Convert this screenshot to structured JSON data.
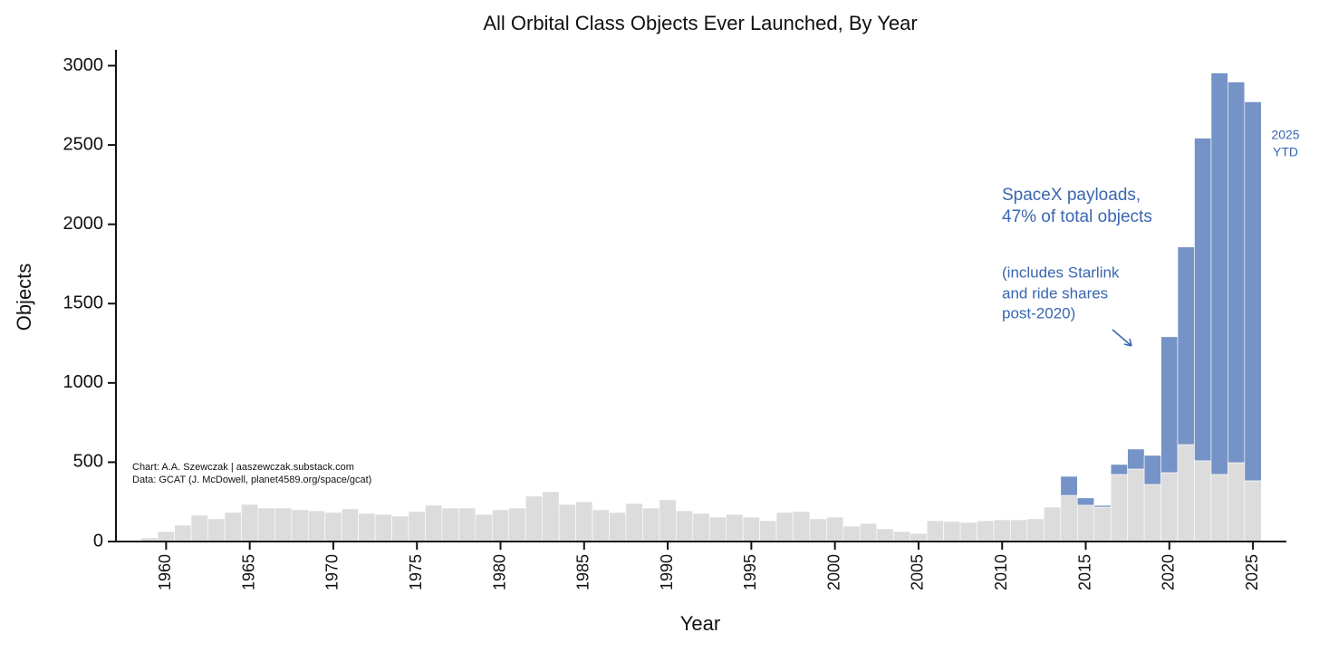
{
  "chart_data": {
    "type": "stacked_bar",
    "title": "All Orbital Class Objects Ever Launched, By Year",
    "x_label": "Year",
    "y_label": "Objects",
    "x": [
      1959,
      1960,
      1961,
      1962,
      1963,
      1964,
      1965,
      1966,
      1967,
      1968,
      1969,
      1970,
      1971,
      1972,
      1973,
      1974,
      1975,
      1976,
      1977,
      1978,
      1979,
      1980,
      1981,
      1982,
      1983,
      1984,
      1985,
      1986,
      1987,
      1988,
      1989,
      1990,
      1991,
      1992,
      1993,
      1994,
      1995,
      1996,
      1997,
      1998,
      1999,
      2000,
      2001,
      2002,
      2003,
      2004,
      2005,
      2006,
      2007,
      2008,
      2009,
      2010,
      2011,
      2012,
      2013,
      2014,
      2015,
      2016,
      2017,
      2018,
      2019,
      2020,
      2021,
      2022,
      2023,
      2024,
      2025
    ],
    "series": [
      {
        "color": "#dcdcdc",
        "values": [
          23,
          63,
          103,
          166,
          143,
          183,
          234,
          211,
          211,
          200,
          194,
          183,
          206,
          177,
          171,
          160,
          189,
          229,
          211,
          211,
          171,
          200,
          211,
          286,
          314,
          234,
          251,
          200,
          183,
          240,
          211,
          263,
          194,
          177,
          154,
          171,
          154,
          131,
          183,
          189,
          143,
          154,
          97,
          114,
          80,
          63,
          51,
          131,
          126,
          120,
          131,
          137,
          137,
          143,
          217,
          291,
          229,
          217,
          423,
          457,
          360,
          434,
          611,
          509,
          423,
          497,
          383
        ]
      },
      {
        "color": "#7593c6",
        "values": [
          0,
          0,
          0,
          0,
          0,
          0,
          0,
          0,
          0,
          0,
          0,
          0,
          0,
          0,
          0,
          0,
          0,
          0,
          0,
          0,
          0,
          0,
          0,
          0,
          0,
          0,
          0,
          0,
          0,
          0,
          0,
          0,
          0,
          0,
          0,
          0,
          0,
          0,
          0,
          0,
          0,
          0,
          0,
          0,
          0,
          0,
          0,
          0,
          0,
          0,
          0,
          0,
          0,
          0,
          0,
          120,
          46,
          11,
          63,
          126,
          183,
          857,
          1246,
          2034,
          2531,
          2400,
          2389
        ]
      }
    ],
    "xlim": [
      1957,
      2027
    ],
    "xticks": [
      1960,
      1965,
      1970,
      1975,
      1980,
      1985,
      1990,
      1995,
      2000,
      2005,
      2010,
      2015,
      2020,
      2025
    ],
    "ylim": [
      0,
      3100
    ],
    "yticks": [
      0,
      500,
      1000,
      1500,
      2000,
      2500,
      3000
    ],
    "annotations": [
      {
        "lines": [
          "SpaceX payloads,",
          "47% of total objects"
        ]
      },
      {
        "lines": [
          "(includes Starlink",
          "and ride shares",
          "post-2020)"
        ]
      },
      {
        "lines": [
          "2025",
          "YTD"
        ]
      }
    ],
    "credits": [
      "Chart: A.A. Szewczak | aaszewczak.substack.com",
      "Data: GCAT (J. McDowell, planet4589.org/space/gcat)"
    ]
  }
}
